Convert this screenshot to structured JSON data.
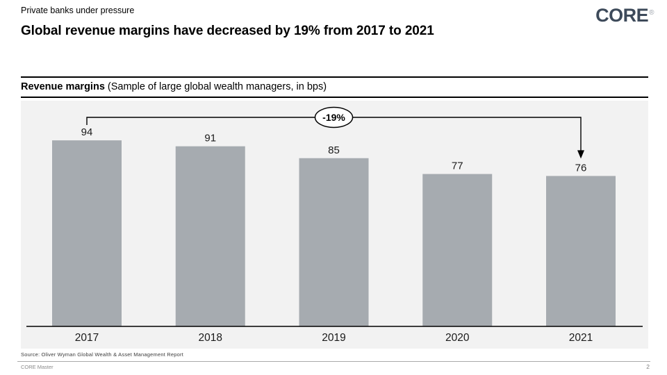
{
  "header": {
    "kicker": "Private banks under pressure",
    "title": "Global revenue margins have decreased by 19% from 2017 to 2021",
    "logo_text": "CORE",
    "logo_registered": "®"
  },
  "section": {
    "label_bold": "Revenue margins",
    "label_rest": "(Sample of large global wealth managers, in bps)"
  },
  "chart_data": {
    "type": "bar",
    "title": "Revenue margins",
    "subtitle": "Sample of large global wealth managers, in bps",
    "categories": [
      "2017",
      "2018",
      "2019",
      "2020",
      "2021"
    ],
    "values": [
      94,
      91,
      85,
      77,
      76
    ],
    "value_labels": true,
    "annotation": {
      "label": "-19%",
      "from_category": "2017",
      "to_category": "2021",
      "shape": "ellipse-on-bracket-with-arrow"
    },
    "xlabel": "",
    "ylabel": "",
    "ylim": [
      0,
      114
    ],
    "grid": false,
    "legend": false,
    "bar_color": "#a6abb0",
    "panel_background": "#f2f2f2",
    "axis_line_color": "#000000"
  },
  "footer": {
    "source": "Source: Oliver Wyman Global Wealth & Asset Management Report",
    "master": "CORE Master",
    "page_number": "2"
  }
}
